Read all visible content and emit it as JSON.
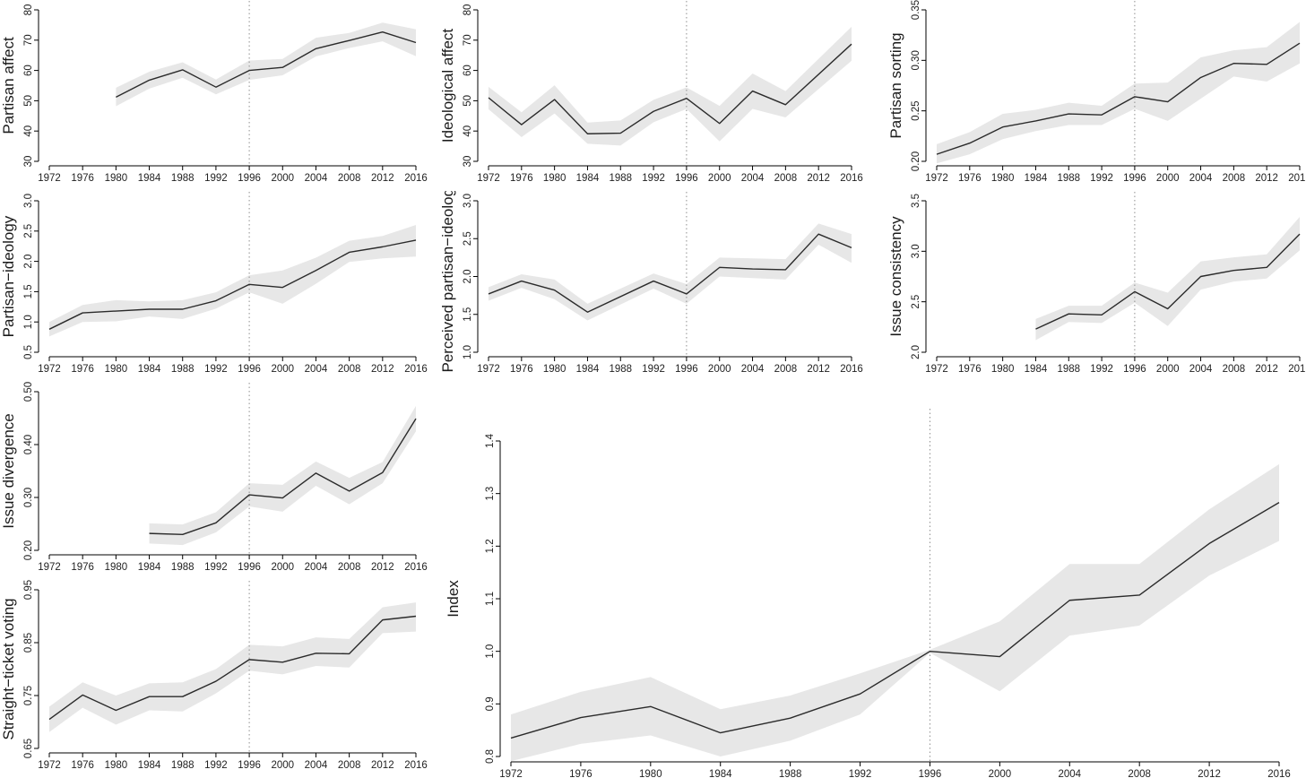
{
  "colors": {
    "line": "#2b2b2b",
    "band": "#e7e7e7",
    "vline": "#8f8f8f",
    "axis": "#000000",
    "tick_text": "#1f1f1f",
    "background": "#ffffff"
  },
  "chart_data": {
    "type": "line",
    "x_ticks": [
      "1972",
      "1976",
      "1980",
      "1984",
      "1988",
      "1992",
      "1996",
      "2000",
      "2004",
      "2008",
      "2012",
      "2016"
    ],
    "x_range": [
      1972,
      2016
    ],
    "vline_x": 1996,
    "grid": "off",
    "legend": "none",
    "band_meaning": "confidence interval (shaded gray)",
    "charts": [
      {
        "name": "partisan-affect",
        "ylabel": "Partisan affect",
        "yticks": [
          "30",
          "40",
          "50",
          "60",
          "70",
          "80"
        ],
        "ylim": [
          30,
          80
        ],
        "years": [
          1980,
          1984,
          1988,
          1992,
          1996,
          2000,
          2004,
          2008,
          2012,
          2016
        ],
        "values": [
          51.2,
          56.8,
          60.2,
          54.5,
          60.0,
          61.0,
          67.2,
          69.9,
          72.7,
          69.2
        ],
        "lower": [
          48.2,
          54.0,
          57.6,
          52.1,
          56.9,
          58.4,
          64.6,
          67.4,
          69.6,
          64.7
        ],
        "upper": [
          54.3,
          59.6,
          62.7,
          57.0,
          63.3,
          63.8,
          70.8,
          72.4,
          75.8,
          73.6
        ]
      },
      {
        "name": "ideological-affect",
        "ylabel": "Ideological affect",
        "yticks": [
          "30",
          "40",
          "50",
          "60",
          "70",
          "80"
        ],
        "ylim": [
          30,
          80
        ],
        "years": [
          1972,
          1976,
          1980,
          1984,
          1988,
          1992,
          1996,
          2000,
          2004,
          2008,
          2012,
          2016
        ],
        "values": [
          51.0,
          42.1,
          50.4,
          39.1,
          39.3,
          46.5,
          50.8,
          42.5,
          53.2,
          48.7,
          null,
          68.7
        ],
        "lower": [
          47.2,
          38.0,
          45.8,
          35.8,
          35.2,
          42.9,
          47.3,
          36.6,
          47.3,
          44.5,
          null,
          63.2
        ],
        "upper": [
          54.6,
          46.2,
          55.1,
          42.8,
          43.5,
          50.3,
          54.4,
          48.3,
          59.0,
          53.2,
          null,
          74.4
        ]
      },
      {
        "name": "partisan-sorting",
        "ylabel": "Partisan sorting",
        "yticks": [
          "0.20",
          "0.25",
          "0.30",
          "0.35"
        ],
        "ylim": [
          0.2,
          0.35
        ],
        "years": [
          1972,
          1976,
          1980,
          1984,
          1988,
          1992,
          1996,
          2000,
          2004,
          2008,
          2012,
          2016
        ],
        "values": [
          0.207,
          0.218,
          0.234,
          0.24,
          0.247,
          0.246,
          0.264,
          0.259,
          0.283,
          0.297,
          0.296,
          0.317
        ],
        "lower": [
          0.198,
          0.207,
          0.222,
          0.23,
          0.236,
          0.236,
          0.252,
          0.24,
          0.262,
          0.284,
          0.279,
          0.297
        ],
        "upper": [
          0.217,
          0.229,
          0.247,
          0.251,
          0.258,
          0.255,
          0.277,
          0.278,
          0.303,
          0.31,
          0.313,
          0.338
        ]
      },
      {
        "name": "partisan-ideology",
        "ylabel": "Partisan−ideology",
        "yticks": [
          "0.5",
          "1.0",
          "1.5",
          "2.0",
          "2.5",
          "3.0"
        ],
        "ylim": [
          0.5,
          3.0
        ],
        "years": [
          1972,
          1976,
          1980,
          1984,
          1988,
          1992,
          1996,
          2000,
          2004,
          2008,
          2012,
          2016
        ],
        "values": [
          0.88,
          1.15,
          1.18,
          1.21,
          1.21,
          1.35,
          1.62,
          1.57,
          1.85,
          2.15,
          2.24,
          2.35
        ],
        "lower": [
          0.76,
          1.0,
          1.01,
          1.09,
          1.05,
          1.22,
          1.49,
          1.3,
          1.63,
          1.99,
          2.05,
          2.08
        ],
        "upper": [
          1.0,
          1.28,
          1.36,
          1.34,
          1.36,
          1.49,
          1.77,
          1.85,
          2.06,
          2.34,
          2.42,
          2.6
        ]
      },
      {
        "name": "perceived-partisan-ideology",
        "ylabel": "Perceived partisan−ideology",
        "yticks": [
          "1.0",
          "1.5",
          "2.0",
          "2.5",
          "3.0"
        ],
        "ylim": [
          1.0,
          3.0
        ],
        "years": [
          1972,
          1976,
          1980,
          1984,
          1988,
          1992,
          1996,
          2000,
          2004,
          2008,
          2012,
          2016
        ],
        "values": [
          1.77,
          1.94,
          1.82,
          1.53,
          null,
          1.94,
          1.77,
          2.12,
          2.1,
          2.09,
          2.56,
          2.38
        ],
        "lower": [
          1.68,
          1.85,
          1.7,
          1.42,
          null,
          1.84,
          1.64,
          2.0,
          1.98,
          1.96,
          2.42,
          2.18
        ],
        "upper": [
          1.86,
          2.03,
          1.96,
          1.64,
          null,
          2.04,
          1.9,
          2.25,
          2.24,
          2.23,
          2.7,
          2.56
        ]
      },
      {
        "name": "issue-consistency",
        "ylabel": "Issue consistency",
        "yticks": [
          "2.0",
          "2.5",
          "3.0",
          "3.5"
        ],
        "ylim": [
          2.0,
          3.5
        ],
        "years": [
          1984,
          1988,
          1992,
          1996,
          2000,
          2004,
          2008,
          2012,
          2016
        ],
        "values": [
          2.23,
          2.38,
          2.37,
          2.6,
          2.43,
          2.75,
          2.81,
          2.84,
          3.17
        ],
        "lower": [
          2.12,
          2.3,
          2.29,
          2.49,
          2.26,
          2.62,
          2.7,
          2.73,
          3.01
        ],
        "upper": [
          2.33,
          2.46,
          2.46,
          2.69,
          2.59,
          2.9,
          2.94,
          2.97,
          3.34
        ]
      },
      {
        "name": "issue-divergence",
        "ylabel": "Issue divergence",
        "yticks": [
          "0.20",
          "0.30",
          "0.40",
          "0.50"
        ],
        "ylim": [
          0.2,
          0.5
        ],
        "years": [
          1984,
          1988,
          1992,
          1996,
          2000,
          2004,
          2008,
          2012,
          2016
        ],
        "values": [
          0.232,
          0.23,
          0.252,
          0.305,
          0.299,
          0.346,
          0.312,
          0.347,
          0.449
        ],
        "lower": [
          0.213,
          0.21,
          0.234,
          0.283,
          0.273,
          0.322,
          0.287,
          0.327,
          0.425
        ],
        "upper": [
          0.251,
          0.249,
          0.272,
          0.327,
          0.324,
          0.368,
          0.337,
          0.367,
          0.473
        ]
      },
      {
        "name": "straight-ticket-voting",
        "ylabel": "Straight−ticket voting",
        "yticks": [
          "0.65",
          "0.75",
          "0.85",
          "0.95"
        ],
        "ylim": [
          0.65,
          0.95
        ],
        "years": [
          1972,
          1976,
          1980,
          1984,
          1988,
          1992,
          1996,
          2000,
          2004,
          2008,
          2012,
          2016
        ],
        "values": [
          0.705,
          0.751,
          0.722,
          0.748,
          0.748,
          0.777,
          0.818,
          0.813,
          0.83,
          0.829,
          0.893,
          0.9
        ],
        "lower": [
          0.681,
          0.727,
          0.695,
          0.722,
          0.72,
          0.754,
          0.797,
          0.79,
          0.806,
          0.803,
          0.868,
          0.871
        ],
        "upper": [
          0.729,
          0.775,
          0.75,
          0.773,
          0.775,
          0.8,
          0.846,
          0.843,
          0.86,
          0.857,
          0.917,
          0.926
        ]
      },
      {
        "name": "index",
        "ylabel": "Index",
        "yticks": [
          "0.8",
          "0.9",
          "1.0",
          "1.1",
          "1.2",
          "1.3",
          "1.4"
        ],
        "ylim": [
          0.8,
          1.4
        ],
        "years": [
          1972,
          1976,
          1980,
          1984,
          1988,
          1992,
          1996,
          2000,
          2004,
          2008,
          2012,
          2016
        ],
        "values": [
          0.835,
          0.874,
          0.895,
          0.845,
          0.873,
          0.919,
          1.0,
          0.99,
          1.097,
          1.107,
          1.205,
          1.283
        ],
        "lower": [
          0.791,
          0.824,
          0.84,
          0.8,
          0.83,
          0.88,
          0.997,
          0.924,
          1.03,
          1.049,
          1.144,
          1.21
        ],
        "upper": [
          0.88,
          0.923,
          0.951,
          0.89,
          0.916,
          0.958,
          1.003,
          1.057,
          1.166,
          1.166,
          1.27,
          1.356
        ]
      }
    ]
  }
}
